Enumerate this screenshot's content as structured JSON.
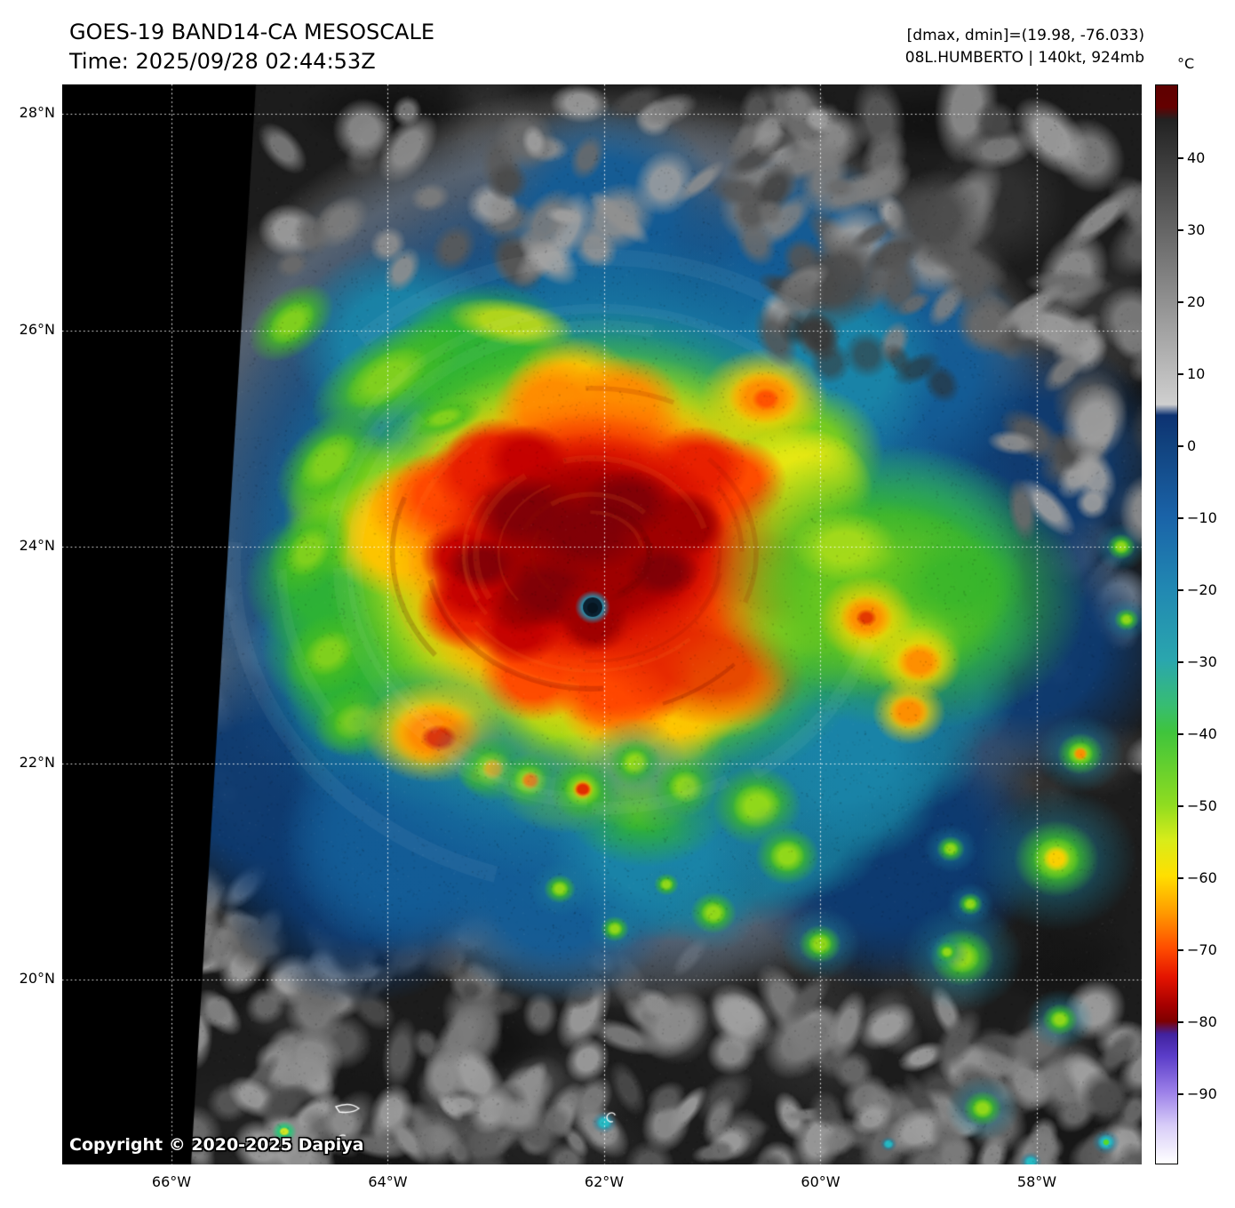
{
  "header": {
    "title": "GOES-19 BAND14-CA MESOSCALE",
    "time": "Time: 2025/09/28 02:44:53Z",
    "range_info": "[dmax, dmin]=(19.98, -76.033)",
    "storm_info": "08L.HUMBERTO | 140kt, 924mb"
  },
  "axes": {
    "lat_labels": [
      "28°N",
      "26°N",
      "24°N",
      "22°N",
      "20°N"
    ],
    "lon_labels": [
      "66°W",
      "64°W",
      "62°W",
      "60°W",
      "58°W"
    ]
  },
  "colorbar": {
    "unit": "°C",
    "tick_labels": [
      "40",
      "30",
      "20",
      "10",
      "0",
      "−10",
      "−20",
      "−30",
      "−40",
      "−50",
      "−60",
      "−70",
      "−80",
      "−90"
    ]
  },
  "map": {
    "copyright": "Copyright © 2020-2025 Dapiya"
  }
}
